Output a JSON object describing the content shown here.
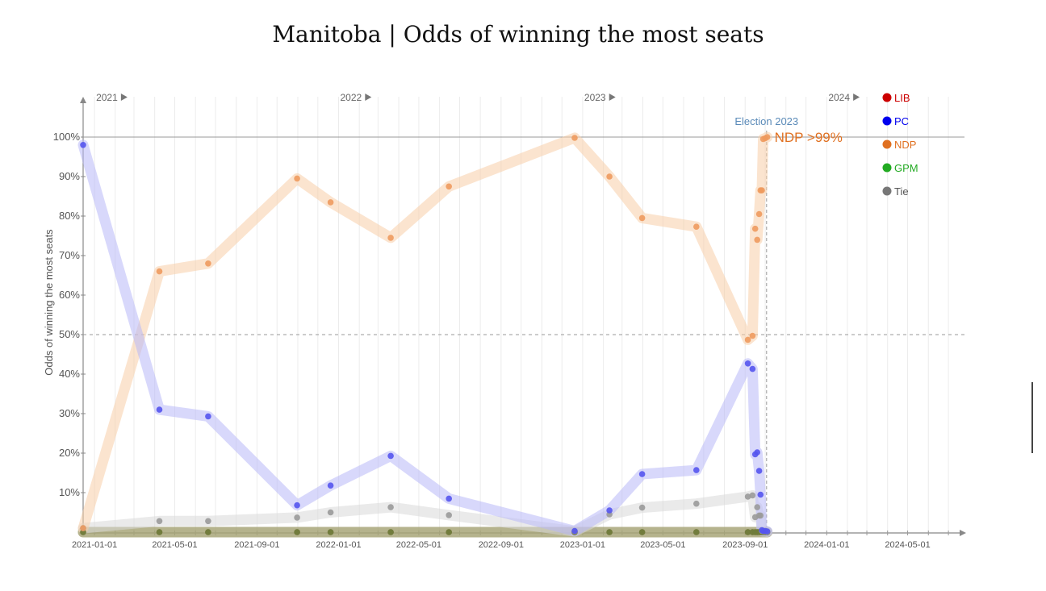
{
  "chart_data": {
    "type": "line",
    "title": "Manitoba | Odds of winning the most seats",
    "ylabel": "Odds of winning the most seats",
    "xlabel": "",
    "xlim": [
      "2020-12-15",
      "2024-07-25"
    ],
    "ylim": [
      0,
      100
    ],
    "y_ticks": [
      10,
      20,
      30,
      40,
      50,
      60,
      70,
      80,
      90,
      100
    ],
    "y_tick_labels": [
      "10%",
      "20%",
      "30%",
      "40%",
      "50%",
      "60%",
      "70%",
      "80%",
      "90%",
      "100%"
    ],
    "x_ticks": [
      "2021-01-01",
      "2021-05-01",
      "2021-09-01",
      "2022-01-01",
      "2022-05-01",
      "2022-09-01",
      "2023-01-01",
      "2023-05-01",
      "2023-09-01",
      "2024-01-01",
      "2024-05-01"
    ],
    "year_markers": [
      {
        "label": "2021",
        "date": "2021-01-01"
      },
      {
        "label": "2022",
        "date": "2022-01-01"
      },
      {
        "label": "2023",
        "date": "2023-01-01"
      },
      {
        "label": "2024",
        "date": "2024-01-01"
      }
    ],
    "reference_line_50": 50,
    "election": {
      "label": "Election 2023",
      "date": "2023-10-03"
    },
    "annotation": {
      "text": "NDP >99%",
      "date": "2023-10-04",
      "value": 100
    },
    "legend_position": "top-right",
    "grid": true,
    "x": [
      "2020-12-15",
      "2021-04-08",
      "2021-06-20",
      "2021-10-31",
      "2021-12-20",
      "2022-03-20",
      "2022-06-15",
      "2022-12-20",
      "2023-02-10",
      "2023-03-31",
      "2023-06-20",
      "2023-09-05",
      "2023-09-12",
      "2023-09-16",
      "2023-09-19",
      "2023-09-22",
      "2023-09-24",
      "2023-09-26",
      "2023-09-28",
      "2023-10-01",
      "2023-10-04"
    ],
    "series": [
      {
        "name": "LIB",
        "color": "#cc0000",
        "values": [
          0,
          0,
          0,
          0,
          0,
          0,
          0,
          0,
          0,
          0,
          0,
          0,
          0,
          0,
          0,
          0,
          0,
          0,
          0,
          0,
          0
        ]
      },
      {
        "name": "PC",
        "color": "#0000ee",
        "values": [
          98,
          31,
          29.3,
          6.8,
          11.8,
          19.3,
          8.5,
          0.3,
          5.5,
          14.7,
          15.7,
          42.7,
          41.3,
          19.7,
          20.2,
          15.5,
          9.5,
          0.5,
          0.3,
          0.3,
          0.2
        ]
      },
      {
        "name": "NDP",
        "color": "#e07020",
        "values": [
          1,
          66,
          68,
          89.5,
          83.5,
          74.5,
          87.5,
          99.8,
          90,
          79.5,
          77.3,
          48.7,
          49.7,
          76.8,
          74,
          80.5,
          86.5,
          86.5,
          99.5,
          99.7,
          100
        ]
      },
      {
        "name": "GPM",
        "color": "#22aa22",
        "values": [
          0,
          0,
          0,
          0,
          0,
          0,
          0,
          0,
          0,
          0,
          0,
          0,
          0,
          0,
          0,
          0,
          0,
          0,
          0,
          0,
          0
        ]
      },
      {
        "name": "Tie",
        "color": "#777777",
        "values": [
          1,
          2.8,
          2.8,
          3.7,
          5,
          6.3,
          4.3,
          0.2,
          4.5,
          6.2,
          7.2,
          9,
          9.3,
          3.8,
          6.3,
          4.2,
          4.2,
          0.3,
          0.2,
          0.2,
          0.1
        ]
      }
    ]
  }
}
